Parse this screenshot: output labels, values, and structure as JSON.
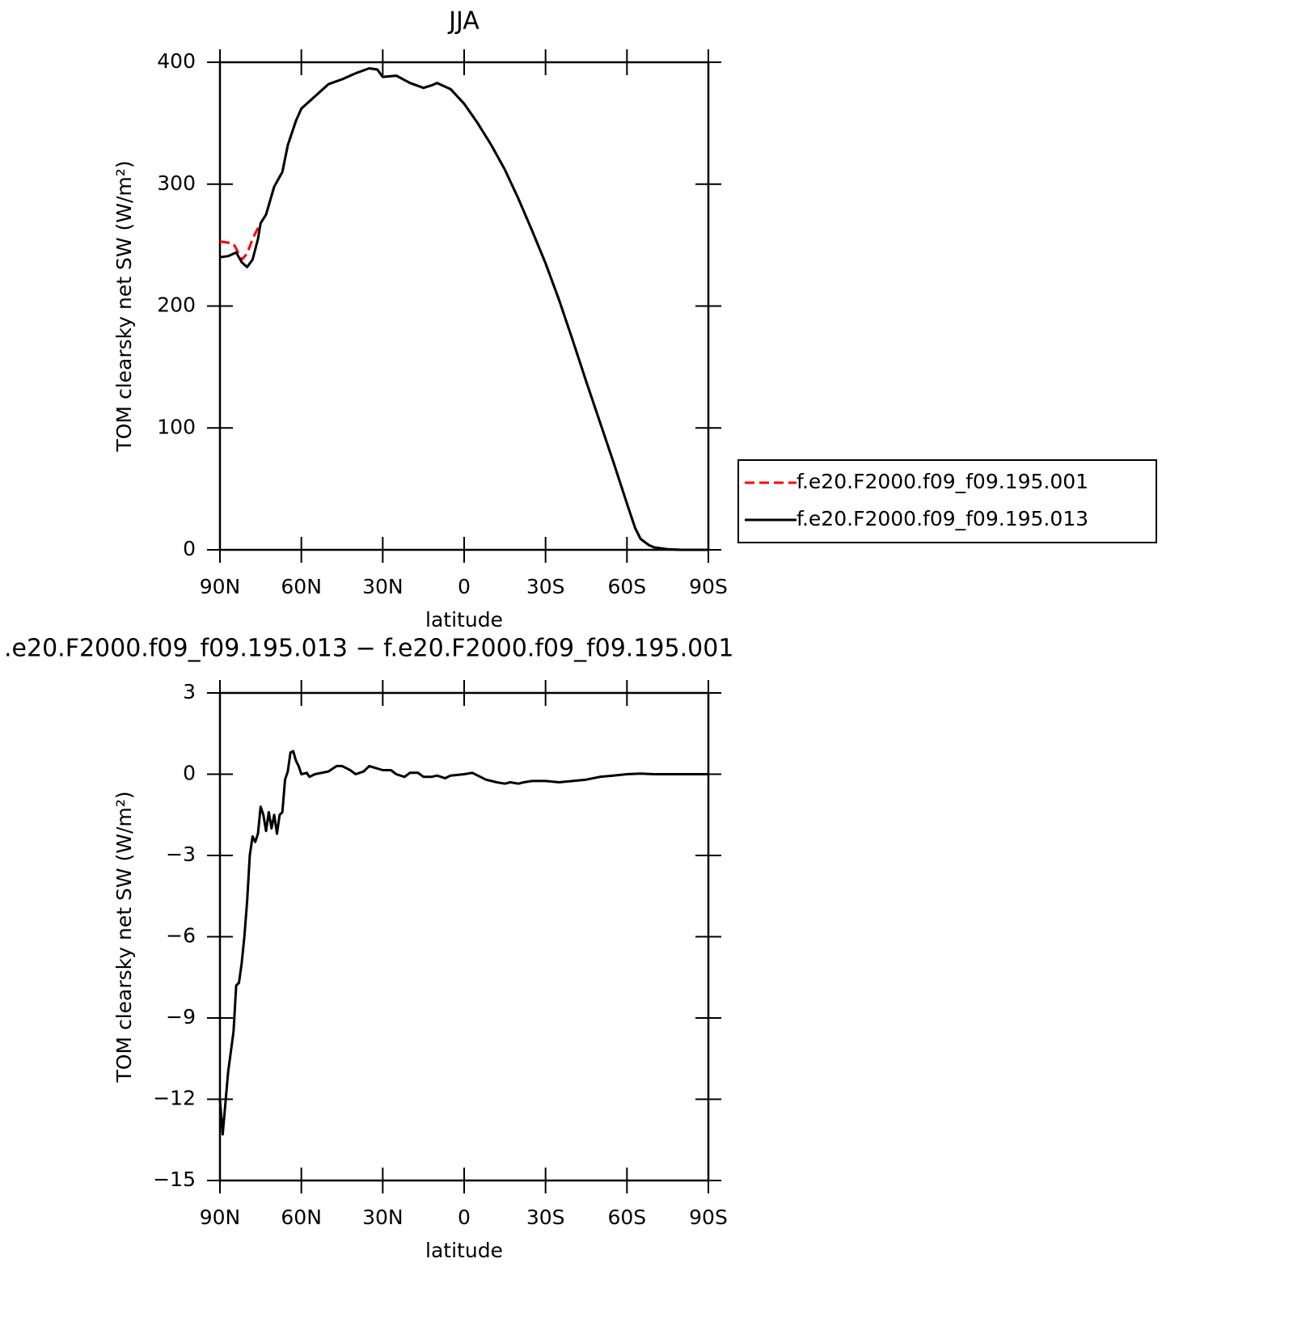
{
  "chart_data": [
    {
      "type": "line",
      "title": "JJA",
      "xlabel": "latitude",
      "ylabel": "TOM clearsky net SW (W/m²)",
      "xlim": [
        90,
        -90
      ],
      "ylim": [
        0,
        400
      ],
      "xticks": [
        {
          "value": 90,
          "label": "90N"
        },
        {
          "value": 60,
          "label": "60N"
        },
        {
          "value": 30,
          "label": "30N"
        },
        0,
        {
          "value": -30,
          "label": "30S"
        },
        {
          "value": -60,
          "label": "60S"
        },
        {
          "value": -90,
          "label": "90S"
        }
      ],
      "yticks": [
        0,
        100,
        200,
        300,
        400
      ],
      "legend": "outside-right",
      "x": [
        90,
        87,
        85,
        84,
        82,
        80,
        78,
        76,
        75,
        73,
        70,
        67,
        65,
        62,
        60,
        55,
        50,
        45,
        40,
        35,
        32,
        30,
        25,
        20,
        15,
        12,
        10,
        5,
        0,
        -5,
        -10,
        -15,
        -20,
        -25,
        -30,
        -35,
        -40,
        -45,
        -50,
        -55,
        -60,
        -63,
        -65,
        -68,
        -70,
        -75,
        -80,
        -90
      ],
      "series": [
        {
          "name": "f.e20.F2000.f09_f09.195.001",
          "color": "#ff0000",
          "dashed": true,
          "values": [
            253,
            252,
            251,
            247,
            238,
            243,
            255,
            264,
            268,
            275,
            298,
            310,
            332,
            352,
            362,
            372,
            382,
            386,
            391,
            395,
            394,
            388,
            389,
            383,
            379,
            381,
            383,
            378,
            366,
            350,
            332,
            312,
            288,
            262,
            235,
            205,
            172,
            138,
            105,
            72,
            38,
            18,
            9,
            4,
            2,
            0.5,
            0,
            0
          ]
        },
        {
          "name": "f.e20.F2000.f09_f09.195.013",
          "color": "#000000",
          "dashed": false,
          "values": [
            240,
            241,
            243,
            244,
            236,
            232,
            238,
            255,
            268,
            275,
            298,
            310,
            332,
            352,
            362,
            372,
            382,
            386,
            391,
            395,
            394,
            388,
            389,
            383,
            379,
            381,
            383,
            378,
            366,
            350,
            332,
            312,
            288,
            262,
            235,
            205,
            172,
            138,
            105,
            72,
            38,
            18,
            9,
            4,
            2,
            0.5,
            0,
            0
          ]
        }
      ]
    },
    {
      "type": "line",
      "title": ".e20.F2000.f09_f09.195.013 − f.e20.F2000.f09_f09.195.001",
      "xlabel": "latitude",
      "ylabel": "TOM clearsky net SW (W/m²)",
      "xlim": [
        90,
        -90
      ],
      "ylim": [
        -15,
        3
      ],
      "xticks": [
        {
          "value": 90,
          "label": "90N"
        },
        {
          "value": 60,
          "label": "60N"
        },
        {
          "value": 30,
          "label": "30N"
        },
        0,
        {
          "value": -30,
          "label": "30S"
        },
        {
          "value": -60,
          "label": "60S"
        },
        {
          "value": -90,
          "label": "90S"
        }
      ],
      "yticks": [
        {
          "value": -15,
          "label": "−15"
        },
        {
          "value": -12,
          "label": "−12"
        },
        {
          "value": -9,
          "label": "−9"
        },
        {
          "value": -6,
          "label": "−6"
        },
        {
          "value": -3,
          "label": "−3"
        },
        0,
        3
      ],
      "x": [
        90,
        89,
        87,
        85,
        84,
        83,
        82,
        81,
        80,
        79,
        78,
        77,
        76,
        75,
        74,
        73,
        72,
        71,
        70,
        69,
        68,
        67,
        66,
        65,
        64,
        63,
        62,
        61,
        60,
        58,
        57,
        55,
        50,
        47,
        45,
        42,
        40,
        37,
        35,
        30,
        27,
        25,
        22,
        20,
        17,
        15,
        12,
        10,
        7,
        5,
        0,
        -3,
        -8,
        -12,
        -15,
        -17,
        -20,
        -22,
        -25,
        -30,
        -35,
        -40,
        -45,
        -50,
        -55,
        -60,
        -65,
        -70,
        -90
      ],
      "series": [
        {
          "color": "#000000",
          "dashed": false,
          "values": [
            -12,
            -13.3,
            -11,
            -9.5,
            -7.8,
            -7.7,
            -7,
            -6,
            -4.7,
            -3,
            -2.3,
            -2.5,
            -2.2,
            -1.2,
            -1.5,
            -2.1,
            -1.4,
            -2,
            -1.5,
            -2.2,
            -1.5,
            -1.4,
            -0.2,
            0.1,
            0.8,
            0.85,
            0.5,
            0.3,
            0,
            0.05,
            -0.1,
            0,
            0.1,
            0.3,
            0.3,
            0.15,
            0,
            0.1,
            0.3,
            0.15,
            0.15,
            0,
            -0.1,
            0.05,
            0.05,
            -0.1,
            -0.1,
            -0.05,
            -0.15,
            -0.05,
            0,
            0.05,
            -0.2,
            -0.3,
            -0.35,
            -0.3,
            -0.35,
            -0.3,
            -0.25,
            -0.25,
            -0.3,
            -0.25,
            -0.2,
            -0.1,
            -0.05,
            0,
            0.02,
            0,
            0
          ]
        }
      ]
    }
  ]
}
